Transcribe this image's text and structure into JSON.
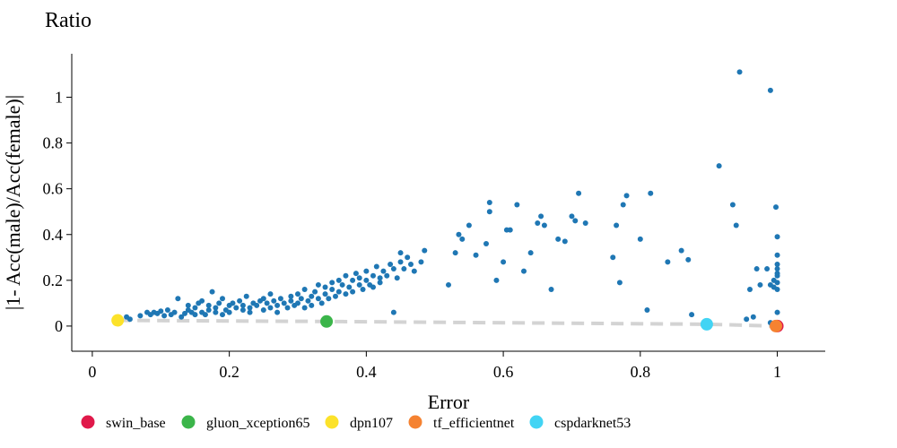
{
  "chart_data": {
    "type": "scatter",
    "title": "Ratio",
    "xlabel": "Error",
    "ylabel": "|1- Acc(male)/Acc(female)|",
    "xlim": [
      -0.03,
      1.07
    ],
    "ylim": [
      -0.11,
      1.19
    ],
    "xticks": [
      0,
      0.2,
      0.4,
      0.6,
      0.8,
      1
    ],
    "xtick_labels": [
      "0",
      "0.2",
      "0.4",
      "0.6",
      "0.8",
      "1"
    ],
    "yticks": [
      0,
      0.2,
      0.4,
      0.6,
      0.8,
      1
    ],
    "ytick_labels": [
      "0",
      "0.2",
      "0.4",
      "0.6",
      "0.8",
      "1"
    ],
    "grid": false,
    "legend_position": "bottom",
    "colors": {
      "points": "#1f77b4",
      "frontier": "#d3d3d3"
    },
    "frontier": {
      "x": [
        0.037,
        0.342,
        0.897,
        1.0
      ],
      "y": [
        0.025,
        0.02,
        0.008,
        0.0
      ]
    },
    "highlighted": [
      {
        "name": "swin_base",
        "color": "#e0194a",
        "x": 1.0,
        "y": 0.0
      },
      {
        "name": "gluon_xception65",
        "color": "#3bb54a",
        "x": 0.342,
        "y": 0.02
      },
      {
        "name": "dpn107",
        "color": "#fce22a",
        "x": 0.037,
        "y": 0.025
      },
      {
        "name": "tf_efficientnet",
        "color": "#f58231",
        "x": 0.998,
        "y": 0.0
      },
      {
        "name": "cspdarknet53",
        "color": "#42d4f4",
        "x": 0.897,
        "y": 0.008
      }
    ],
    "points": [
      [
        0.04,
        0.03
      ],
      [
        0.05,
        0.04
      ],
      [
        0.055,
        0.03
      ],
      [
        0.07,
        0.045
      ],
      [
        0.08,
        0.06
      ],
      [
        0.085,
        0.05
      ],
      [
        0.09,
        0.06
      ],
      [
        0.095,
        0.055
      ],
      [
        0.1,
        0.065
      ],
      [
        0.105,
        0.045
      ],
      [
        0.11,
        0.07
      ],
      [
        0.115,
        0.05
      ],
      [
        0.12,
        0.06
      ],
      [
        0.125,
        0.12
      ],
      [
        0.13,
        0.04
      ],
      [
        0.135,
        0.055
      ],
      [
        0.14,
        0.07
      ],
      [
        0.14,
        0.09
      ],
      [
        0.145,
        0.06
      ],
      [
        0.15,
        0.05
      ],
      [
        0.15,
        0.08
      ],
      [
        0.155,
        0.1
      ],
      [
        0.16,
        0.06
      ],
      [
        0.16,
        0.11
      ],
      [
        0.165,
        0.05
      ],
      [
        0.17,
        0.07
      ],
      [
        0.17,
        0.09
      ],
      [
        0.175,
        0.15
      ],
      [
        0.18,
        0.06
      ],
      [
        0.18,
        0.08
      ],
      [
        0.185,
        0.1
      ],
      [
        0.19,
        0.05
      ],
      [
        0.19,
        0.12
      ],
      [
        0.195,
        0.07
      ],
      [
        0.2,
        0.09
      ],
      [
        0.2,
        0.06
      ],
      [
        0.205,
        0.1
      ],
      [
        0.21,
        0.08
      ],
      [
        0.215,
        0.11
      ],
      [
        0.22,
        0.07
      ],
      [
        0.22,
        0.09
      ],
      [
        0.225,
        0.13
      ],
      [
        0.23,
        0.08
      ],
      [
        0.23,
        0.06
      ],
      [
        0.235,
        0.1
      ],
      [
        0.24,
        0.09
      ],
      [
        0.245,
        0.11
      ],
      [
        0.25,
        0.07
      ],
      [
        0.25,
        0.12
      ],
      [
        0.255,
        0.1
      ],
      [
        0.26,
        0.08
      ],
      [
        0.26,
        0.14
      ],
      [
        0.265,
        0.11
      ],
      [
        0.27,
        0.09
      ],
      [
        0.27,
        0.06
      ],
      [
        0.275,
        0.12
      ],
      [
        0.28,
        0.1
      ],
      [
        0.285,
        0.08
      ],
      [
        0.29,
        0.13
      ],
      [
        0.29,
        0.11
      ],
      [
        0.295,
        0.09
      ],
      [
        0.3,
        0.14
      ],
      [
        0.3,
        0.1
      ],
      [
        0.305,
        0.12
      ],
      [
        0.31,
        0.08
      ],
      [
        0.31,
        0.16
      ],
      [
        0.315,
        0.11
      ],
      [
        0.32,
        0.13
      ],
      [
        0.32,
        0.09
      ],
      [
        0.325,
        0.15
      ],
      [
        0.33,
        0.12
      ],
      [
        0.33,
        0.18
      ],
      [
        0.335,
        0.1
      ],
      [
        0.34,
        0.14
      ],
      [
        0.34,
        0.17
      ],
      [
        0.345,
        0.12
      ],
      [
        0.35,
        0.19
      ],
      [
        0.35,
        0.16
      ],
      [
        0.355,
        0.13
      ],
      [
        0.36,
        0.2
      ],
      [
        0.36,
        0.15
      ],
      [
        0.365,
        0.18
      ],
      [
        0.37,
        0.14
      ],
      [
        0.37,
        0.22
      ],
      [
        0.375,
        0.17
      ],
      [
        0.38,
        0.2
      ],
      [
        0.38,
        0.15
      ],
      [
        0.385,
        0.23
      ],
      [
        0.39,
        0.18
      ],
      [
        0.39,
        0.21
      ],
      [
        0.395,
        0.16
      ],
      [
        0.4,
        0.2
      ],
      [
        0.4,
        0.24
      ],
      [
        0.405,
        0.18
      ],
      [
        0.41,
        0.22
      ],
      [
        0.41,
        0.17
      ],
      [
        0.415,
        0.26
      ],
      [
        0.42,
        0.21
      ],
      [
        0.42,
        0.19
      ],
      [
        0.425,
        0.24
      ],
      [
        0.43,
        0.22
      ],
      [
        0.435,
        0.27
      ],
      [
        0.44,
        0.25
      ],
      [
        0.445,
        0.21
      ],
      [
        0.45,
        0.28
      ],
      [
        0.45,
        0.32
      ],
      [
        0.455,
        0.25
      ],
      [
        0.46,
        0.3
      ],
      [
        0.465,
        0.27
      ],
      [
        0.47,
        0.24
      ],
      [
        0.48,
        0.28
      ],
      [
        0.485,
        0.33
      ],
      [
        0.44,
        0.06
      ],
      [
        0.52,
        0.18
      ],
      [
        0.53,
        0.32
      ],
      [
        0.535,
        0.4
      ],
      [
        0.54,
        0.38
      ],
      [
        0.55,
        0.44
      ],
      [
        0.56,
        0.31
      ],
      [
        0.575,
        0.36
      ],
      [
        0.58,
        0.5
      ],
      [
        0.58,
        0.54
      ],
      [
        0.59,
        0.2
      ],
      [
        0.6,
        0.28
      ],
      [
        0.605,
        0.42
      ],
      [
        0.61,
        0.42
      ],
      [
        0.62,
        0.53
      ],
      [
        0.63,
        0.24
      ],
      [
        0.64,
        0.32
      ],
      [
        0.65,
        0.45
      ],
      [
        0.655,
        0.48
      ],
      [
        0.66,
        0.44
      ],
      [
        0.67,
        0.16
      ],
      [
        0.68,
        0.38
      ],
      [
        0.69,
        0.37
      ],
      [
        0.7,
        0.48
      ],
      [
        0.705,
        0.46
      ],
      [
        0.71,
        0.58
      ],
      [
        0.72,
        0.45
      ],
      [
        0.76,
        0.3
      ],
      [
        0.765,
        0.44
      ],
      [
        0.77,
        0.19
      ],
      [
        0.775,
        0.53
      ],
      [
        0.78,
        0.57
      ],
      [
        0.8,
        0.38
      ],
      [
        0.81,
        0.07
      ],
      [
        0.815,
        0.58
      ],
      [
        0.84,
        0.28
      ],
      [
        0.86,
        0.33
      ],
      [
        0.87,
        0.29
      ],
      [
        0.875,
        0.05
      ],
      [
        0.915,
        0.7
      ],
      [
        0.935,
        0.53
      ],
      [
        0.94,
        0.44
      ],
      [
        0.945,
        1.11
      ],
      [
        0.955,
        0.03
      ],
      [
        0.96,
        0.16
      ],
      [
        0.965,
        0.04
      ],
      [
        0.97,
        0.25
      ],
      [
        0.975,
        0.18
      ],
      [
        0.985,
        0.25
      ],
      [
        0.99,
        1.03
      ],
      [
        0.99,
        0.18
      ],
      [
        0.995,
        0.2
      ],
      [
        0.998,
        0.52
      ],
      [
        1.0,
        0.39
      ],
      [
        1.0,
        0.31
      ],
      [
        1.0,
        0.27
      ],
      [
        1.0,
        0.25
      ],
      [
        1.0,
        0.23
      ],
      [
        1.0,
        0.22
      ],
      [
        1.0,
        0.19
      ],
      [
        0.995,
        0.17
      ],
      [
        1.0,
        0.16
      ],
      [
        1.0,
        0.06
      ],
      [
        0.99,
        0.015
      ]
    ]
  }
}
